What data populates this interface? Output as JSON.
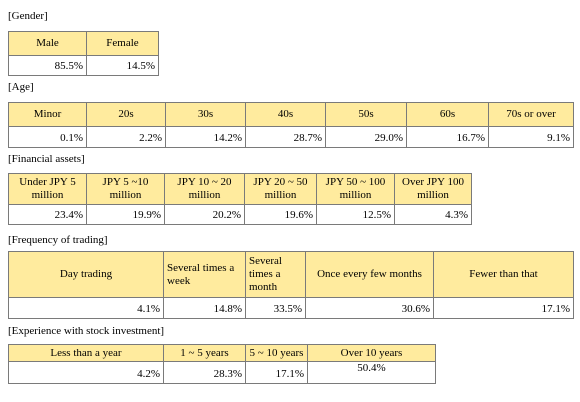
{
  "sections": [
    {
      "label": "[Gender]",
      "headers": [
        "Male",
        "Female"
      ],
      "values": [
        "85.5%",
        "14.5%"
      ]
    },
    {
      "label": "[Age]",
      "headers": [
        "Minor",
        "20s",
        "30s",
        "40s",
        "50s",
        "60s",
        "70s or over"
      ],
      "values": [
        "0.1%",
        "2.2%",
        "14.2%",
        "28.7%",
        "29.0%",
        "16.7%",
        "9.1%"
      ]
    },
    {
      "label": "[Financial assets]",
      "headers": [
        "Under JPY 5 million",
        "JPY 5 ~10 million",
        "JPY 10 ~ 20 million",
        "JPY 20 ~ 50 million",
        "JPY 50 ~ 100 million",
        "Over JPY 100 million"
      ],
      "values": [
        "23.4%",
        "19.9%",
        "20.2%",
        "19.6%",
        "12.5%",
        "4.3%"
      ]
    },
    {
      "label": "[Frequency of trading]",
      "headers": [
        "Day trading",
        "Several times a week",
        "Several times a month",
        "Once every few months",
        "Fewer than that"
      ],
      "values": [
        "4.1%",
        "14.8%",
        "33.5%",
        "30.6%",
        "17.1%"
      ]
    },
    {
      "label": "[Experience with stock investment]",
      "headers": [
        "Less than a year",
        "1 ~ 5 years",
        "5 ~ 10 years",
        "Over 10 years"
      ],
      "values": [
        "4.2%",
        "28.3%",
        "17.1%",
        "50.4%"
      ]
    }
  ]
}
